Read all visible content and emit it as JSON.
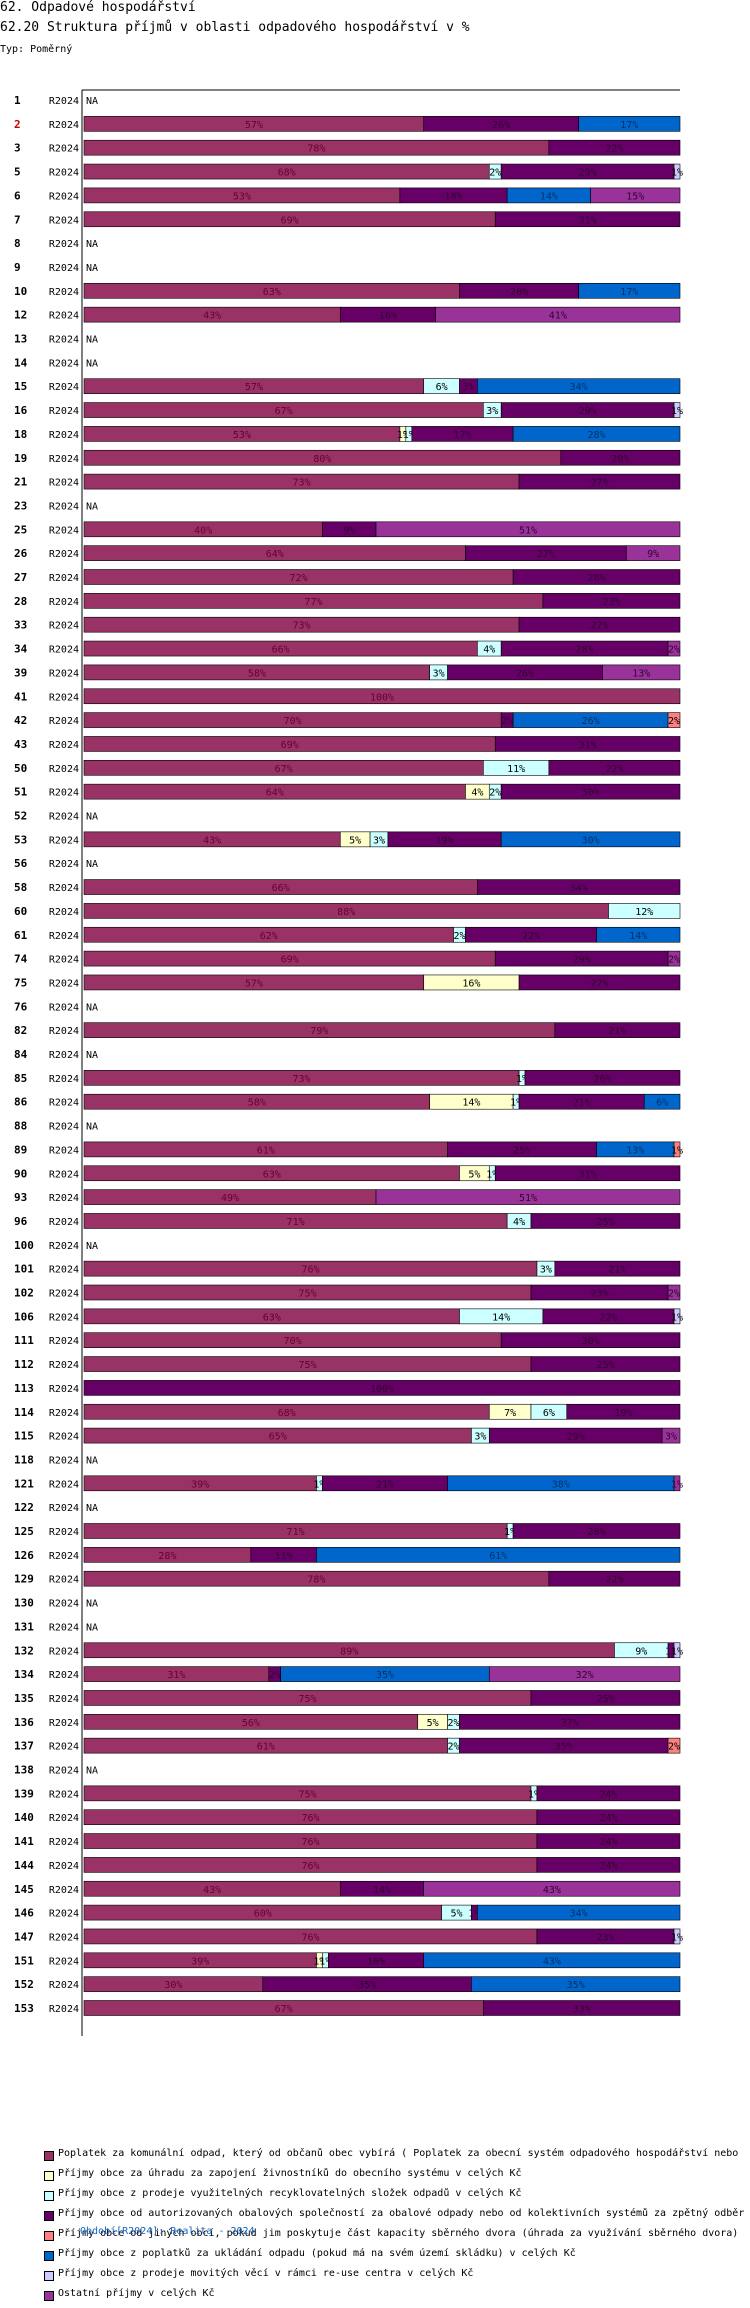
{
  "header": {
    "title": "62. Odpadové hospodářství",
    "subtitle": "62.20 Struktura příjmů v oblasti odpadového hospodářství v %",
    "type_label": "Typ: Poměrný"
  },
  "footer": {
    "period": "Období[R2024]: Realita - 2024"
  },
  "colors": {
    "c1": "#993366",
    "c2": "#ffffcc",
    "c3": "#ccffff",
    "c4": "#660066",
    "c5": "#ff8080",
    "c6": "#0066cc",
    "c7": "#ccccff",
    "c8": "#993399"
  },
  "chart_data": {
    "type": "bar",
    "orientation": "horizontal",
    "stacked": true,
    "percent": true,
    "xlim": [
      0,
      100
    ],
    "period_label": "R2024",
    "na_label": "NA",
    "highlighted_row": "2",
    "series": [
      {
        "key": "c1",
        "name": "Poplatek za komunální odpad, který od občanů obec vybírá ( Poplatek za obecní systém odpadového hospodářství  nebo"
      },
      {
        "key": "c2",
        "name": "Příjmy obce za úhradu za zapojení živnostníků do obecního systému v celých Kč"
      },
      {
        "key": "c3",
        "name": "Příjmy obce z prodeje využitelných recyklovatelných složek odpadů v celých Kč"
      },
      {
        "key": "c4",
        "name": "Příjmy obce od autorizovaných obalových společností za obalové odpady nebo od kolektivních systémů za zpětný odběr"
      },
      {
        "key": "c5",
        "name": "Příjmy obce od jiných obcí, pokud jim poskytuje část kapacity sběrného dvora (úhrada za využívání sběrného dvora) v"
      },
      {
        "key": "c6",
        "name": "Příjmy obce z poplatků za ukládání odpadu (pokud má na svém území skládku) v celých Kč"
      },
      {
        "key": "c7",
        "name": "Příjmy obce z prodeje movitých věcí v rámci re-use centra v celých Kč"
      },
      {
        "key": "c8",
        "name": "Ostatní příjmy v celých Kč"
      }
    ],
    "rows": [
      {
        "id": "1",
        "na": true
      },
      {
        "id": "2",
        "segments": [
          [
            "c1",
            57
          ],
          [
            "c4",
            26
          ],
          [
            "c6",
            17
          ]
        ]
      },
      {
        "id": "3",
        "segments": [
          [
            "c1",
            78
          ],
          [
            "c4",
            22
          ]
        ]
      },
      {
        "id": "5",
        "segments": [
          [
            "c1",
            68
          ],
          [
            "c3",
            2
          ],
          [
            "c4",
            29
          ],
          [
            "c7",
            1
          ]
        ]
      },
      {
        "id": "6",
        "segments": [
          [
            "c1",
            53
          ],
          [
            "c4",
            18
          ],
          [
            "c6",
            14
          ],
          [
            "c8",
            15
          ]
        ]
      },
      {
        "id": "7",
        "segments": [
          [
            "c1",
            69
          ],
          [
            "c4",
            31
          ]
        ]
      },
      {
        "id": "8",
        "na": true
      },
      {
        "id": "9",
        "na": true
      },
      {
        "id": "10",
        "segments": [
          [
            "c1",
            63
          ],
          [
            "c4",
            20
          ],
          [
            "c6",
            17
          ]
        ]
      },
      {
        "id": "12",
        "segments": [
          [
            "c1",
            43
          ],
          [
            "c4",
            16
          ],
          [
            "c8",
            41
          ]
        ]
      },
      {
        "id": "13",
        "na": true
      },
      {
        "id": "14",
        "na": true
      },
      {
        "id": "15",
        "segments": [
          [
            "c1",
            57
          ],
          [
            "c3",
            6
          ],
          [
            "c4",
            3
          ],
          [
            "c6",
            34
          ]
        ]
      },
      {
        "id": "16",
        "segments": [
          [
            "c1",
            67
          ],
          [
            "c3",
            3
          ],
          [
            "c4",
            29
          ],
          [
            "c7",
            1
          ]
        ]
      },
      {
        "id": "18",
        "segments": [
          [
            "c1",
            53
          ],
          [
            "c2",
            1
          ],
          [
            "c3",
            1
          ],
          [
            "c4",
            17
          ],
          [
            "c6",
            28
          ]
        ]
      },
      {
        "id": "19",
        "segments": [
          [
            "c1",
            80
          ],
          [
            "c4",
            20
          ]
        ]
      },
      {
        "id": "21",
        "segments": [
          [
            "c1",
            73
          ],
          [
            "c4",
            27
          ]
        ]
      },
      {
        "id": "23",
        "na": true
      },
      {
        "id": "25",
        "segments": [
          [
            "c1",
            40
          ],
          [
            "c4",
            9
          ],
          [
            "c8",
            51
          ]
        ]
      },
      {
        "id": "26",
        "segments": [
          [
            "c1",
            64
          ],
          [
            "c4",
            27
          ],
          [
            "c8",
            9
          ]
        ]
      },
      {
        "id": "27",
        "segments": [
          [
            "c1",
            72
          ],
          [
            "c4",
            28
          ]
        ]
      },
      {
        "id": "28",
        "segments": [
          [
            "c1",
            77
          ],
          [
            "c4",
            23
          ]
        ]
      },
      {
        "id": "33",
        "segments": [
          [
            "c1",
            73
          ],
          [
            "c4",
            27
          ]
        ]
      },
      {
        "id": "34",
        "segments": [
          [
            "c1",
            66
          ],
          [
            "c3",
            4
          ],
          [
            "c4",
            28
          ],
          [
            "c8",
            2
          ]
        ]
      },
      {
        "id": "39",
        "segments": [
          [
            "c1",
            58
          ],
          [
            "c3",
            3
          ],
          [
            "c4",
            26
          ],
          [
            "c8",
            13
          ]
        ]
      },
      {
        "id": "41",
        "segments": [
          [
            "c1",
            100
          ]
        ]
      },
      {
        "id": "42",
        "segments": [
          [
            "c1",
            70
          ],
          [
            "c4",
            2
          ],
          [
            "c6",
            26
          ],
          [
            "c5",
            2
          ]
        ]
      },
      {
        "id": "43",
        "segments": [
          [
            "c1",
            69
          ],
          [
            "c4",
            31
          ]
        ]
      },
      {
        "id": "50",
        "segments": [
          [
            "c1",
            67
          ],
          [
            "c3",
            11
          ],
          [
            "c4",
            22
          ]
        ]
      },
      {
        "id": "51",
        "segments": [
          [
            "c1",
            64
          ],
          [
            "c2",
            4
          ],
          [
            "c3",
            2
          ],
          [
            "c4",
            30
          ]
        ]
      },
      {
        "id": "52",
        "na": true
      },
      {
        "id": "53",
        "segments": [
          [
            "c1",
            43
          ],
          [
            "c2",
            5
          ],
          [
            "c3",
            3
          ],
          [
            "c4",
            19
          ],
          [
            "c6",
            30
          ]
        ]
      },
      {
        "id": "56",
        "na": true
      },
      {
        "id": "58",
        "segments": [
          [
            "c1",
            66
          ],
          [
            "c4",
            34
          ]
        ]
      },
      {
        "id": "60",
        "segments": [
          [
            "c1",
            88
          ],
          [
            "c3",
            12
          ]
        ]
      },
      {
        "id": "61",
        "segments": [
          [
            "c1",
            62
          ],
          [
            "c3",
            2
          ],
          [
            "c4",
            22
          ],
          [
            "c6",
            14
          ]
        ]
      },
      {
        "id": "74",
        "segments": [
          [
            "c1",
            69
          ],
          [
            "c4",
            29
          ],
          [
            "c8",
            2
          ]
        ]
      },
      {
        "id": "75",
        "segments": [
          [
            "c1",
            57
          ],
          [
            "c2",
            16
          ],
          [
            "c4",
            27
          ]
        ]
      },
      {
        "id": "76",
        "na": true
      },
      {
        "id": "82",
        "segments": [
          [
            "c1",
            79
          ],
          [
            "c4",
            21
          ]
        ]
      },
      {
        "id": "84",
        "na": true
      },
      {
        "id": "85",
        "segments": [
          [
            "c1",
            73
          ],
          [
            "c3",
            1
          ],
          [
            "c4",
            26
          ]
        ]
      },
      {
        "id": "86",
        "segments": [
          [
            "c1",
            58
          ],
          [
            "c2",
            14
          ],
          [
            "c3",
            1
          ],
          [
            "c4",
            21
          ],
          [
            "c6",
            6
          ]
        ]
      },
      {
        "id": "88",
        "na": true
      },
      {
        "id": "89",
        "segments": [
          [
            "c1",
            61
          ],
          [
            "c4",
            25
          ],
          [
            "c6",
            13
          ],
          [
            "c5",
            1
          ]
        ]
      },
      {
        "id": "90",
        "segments": [
          [
            "c1",
            63
          ],
          [
            "c2",
            5
          ],
          [
            "c3",
            1
          ],
          [
            "c4",
            31
          ]
        ]
      },
      {
        "id": "93",
        "segments": [
          [
            "c1",
            49
          ],
          [
            "c8",
            51
          ]
        ]
      },
      {
        "id": "96",
        "segments": [
          [
            "c1",
            71
          ],
          [
            "c3",
            4
          ],
          [
            "c4",
            25
          ]
        ]
      },
      {
        "id": "100",
        "na": true
      },
      {
        "id": "101",
        "segments": [
          [
            "c1",
            76
          ],
          [
            "c3",
            3
          ],
          [
            "c4",
            21
          ]
        ]
      },
      {
        "id": "102",
        "segments": [
          [
            "c1",
            75
          ],
          [
            "c4",
            23
          ],
          [
            "c8",
            2
          ]
        ]
      },
      {
        "id": "106",
        "segments": [
          [
            "c1",
            63
          ],
          [
            "c3",
            14
          ],
          [
            "c4",
            22
          ],
          [
            "c7",
            1
          ]
        ]
      },
      {
        "id": "111",
        "segments": [
          [
            "c1",
            70
          ],
          [
            "c4",
            30
          ]
        ]
      },
      {
        "id": "112",
        "segments": [
          [
            "c1",
            75
          ],
          [
            "c4",
            25
          ]
        ]
      },
      {
        "id": "113",
        "segments": [
          [
            "c4",
            100
          ]
        ]
      },
      {
        "id": "114",
        "segments": [
          [
            "c1",
            68
          ],
          [
            "c2",
            7
          ],
          [
            "c3",
            6
          ],
          [
            "c4",
            19
          ]
        ]
      },
      {
        "id": "115",
        "segments": [
          [
            "c1",
            65
          ],
          [
            "c3",
            3
          ],
          [
            "c4",
            29
          ],
          [
            "c8",
            3
          ]
        ]
      },
      {
        "id": "118",
        "na": true
      },
      {
        "id": "121",
        "segments": [
          [
            "c1",
            39
          ],
          [
            "c3",
            1
          ],
          [
            "c4",
            21
          ],
          [
            "c6",
            38
          ],
          [
            "c8",
            1
          ]
        ]
      },
      {
        "id": "122",
        "na": true
      },
      {
        "id": "125",
        "segments": [
          [
            "c1",
            71
          ],
          [
            "c3",
            1
          ],
          [
            "c4",
            28
          ]
        ]
      },
      {
        "id": "126",
        "segments": [
          [
            "c1",
            28
          ],
          [
            "c4",
            11
          ],
          [
            "c6",
            61
          ]
        ]
      },
      {
        "id": "129",
        "segments": [
          [
            "c1",
            78
          ],
          [
            "c4",
            22
          ]
        ]
      },
      {
        "id": "130",
        "na": true
      },
      {
        "id": "131",
        "na": true
      },
      {
        "id": "132",
        "segments": [
          [
            "c1",
            89
          ],
          [
            "c3",
            9
          ],
          [
            "c4",
            1
          ],
          [
            "c7",
            1
          ]
        ]
      },
      {
        "id": "134",
        "segments": [
          [
            "c1",
            31
          ],
          [
            "c4",
            2
          ],
          [
            "c6",
            35
          ],
          [
            "c8",
            32
          ]
        ]
      },
      {
        "id": "135",
        "segments": [
          [
            "c1",
            75
          ],
          [
            "c4",
            25
          ]
        ]
      },
      {
        "id": "136",
        "segments": [
          [
            "c1",
            56
          ],
          [
            "c2",
            5
          ],
          [
            "c3",
            2
          ],
          [
            "c4",
            37
          ]
        ]
      },
      {
        "id": "137",
        "segments": [
          [
            "c1",
            61
          ],
          [
            "c3",
            2
          ],
          [
            "c4",
            35
          ],
          [
            "c5",
            2
          ]
        ]
      },
      {
        "id": "138",
        "na": true
      },
      {
        "id": "139",
        "segments": [
          [
            "c1",
            75
          ],
          [
            "c3",
            1
          ],
          [
            "c4",
            24
          ]
        ]
      },
      {
        "id": "140",
        "segments": [
          [
            "c1",
            76
          ],
          [
            "c4",
            24
          ]
        ]
      },
      {
        "id": "141",
        "segments": [
          [
            "c1",
            76
          ],
          [
            "c4",
            24
          ]
        ]
      },
      {
        "id": "144",
        "segments": [
          [
            "c1",
            76
          ],
          [
            "c4",
            24
          ]
        ]
      },
      {
        "id": "145",
        "segments": [
          [
            "c1",
            43
          ],
          [
            "c4",
            14
          ],
          [
            "c8",
            43
          ]
        ]
      },
      {
        "id": "146",
        "segments": [
          [
            "c1",
            60
          ],
          [
            "c3",
            5
          ],
          [
            "c4",
            1
          ],
          [
            "c6",
            34
          ]
        ]
      },
      {
        "id": "147",
        "segments": [
          [
            "c1",
            76
          ],
          [
            "c4",
            23
          ],
          [
            "c7",
            1
          ]
        ]
      },
      {
        "id": "151",
        "segments": [
          [
            "c1",
            39
          ],
          [
            "c2",
            1
          ],
          [
            "c3",
            1
          ],
          [
            "c4",
            16
          ],
          [
            "c6",
            43
          ]
        ]
      },
      {
        "id": "152",
        "segments": [
          [
            "c1",
            30
          ],
          [
            "c4",
            35
          ],
          [
            "c6",
            35
          ]
        ]
      },
      {
        "id": "153",
        "segments": [
          [
            "c1",
            67
          ],
          [
            "c4",
            33
          ]
        ]
      }
    ]
  }
}
